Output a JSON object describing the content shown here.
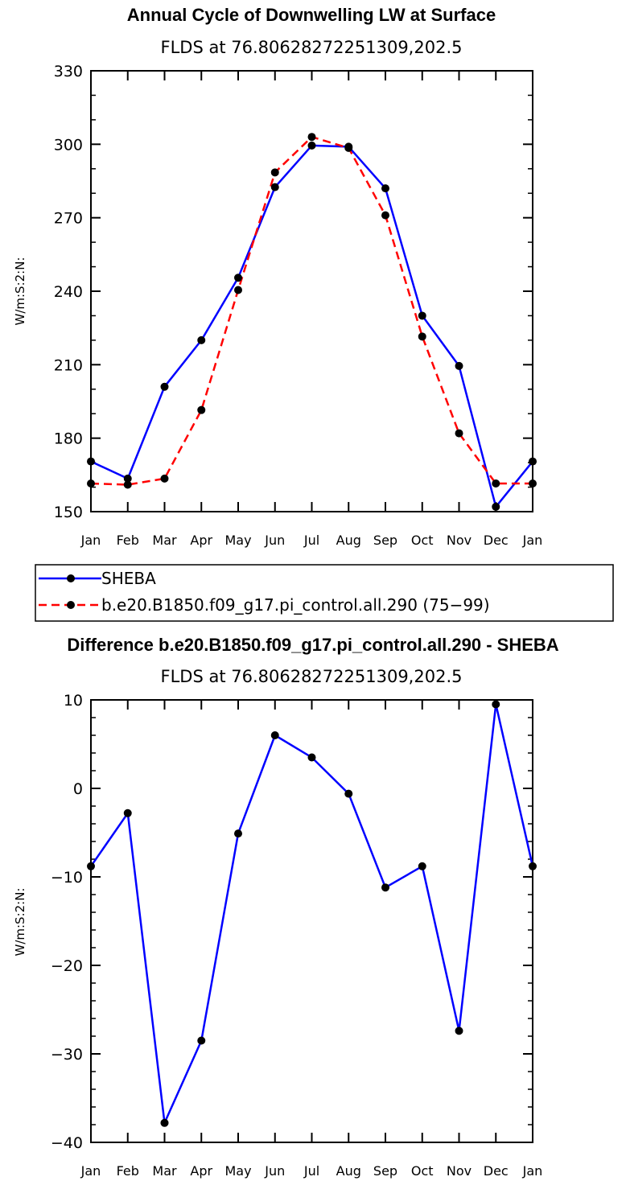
{
  "chart_data": [
    {
      "type": "line",
      "title": "Annual Cycle of Downwelling LW at Surface",
      "subtitle": "FLDS at 76.80628272251309,202.5",
      "xlabel": "",
      "ylabel": "W/m:S:2:N:",
      "ylim": [
        150,
        330
      ],
      "yticks": [
        "330",
        "300",
        "270",
        "240",
        "210",
        "180",
        "150"
      ],
      "ytick_values": [
        330,
        300,
        270,
        240,
        210,
        180,
        150
      ],
      "categories": [
        "Jan",
        "Feb",
        "Mar",
        "Apr",
        "May",
        "Jun",
        "Jul",
        "Aug",
        "Sep",
        "Oct",
        "Nov",
        "Dec",
        "Jan"
      ],
      "series": [
        {
          "name": "SHEBA",
          "color": "#0000ff",
          "dash": "solid",
          "values": [
            170.5,
            163.5,
            201,
            220,
            245.5,
            282.5,
            299.5,
            299,
            282,
            230,
            209.5,
            152,
            170.5
          ]
        },
        {
          "name": "b.e20.B1850.f09_g17.pi_control.all.290 (75−99)",
          "color": "#ff0000",
          "dash": "dashed",
          "values": [
            161.5,
            161,
            163.5,
            191.5,
            240.5,
            288.5,
            303,
            298.5,
            271,
            221.5,
            182,
            161.5,
            161.5
          ]
        }
      ],
      "legend": {
        "items": [
          "SHEBA",
          "b.e20.B1850.f09_g17.pi_control.all.290 (75−99)"
        ],
        "placement": "below"
      }
    },
    {
      "type": "line",
      "title": "Difference b.e20.B1850.f09_g17.pi_control.all.290 - SHEBA",
      "subtitle": "FLDS at 76.80628272251309,202.5",
      "xlabel": "",
      "ylabel": "W/m:S:2:N:",
      "ylim": [
        -40,
        10
      ],
      "yticks": [
        "10",
        "0",
        "−10",
        "−20",
        "−30",
        "−40"
      ],
      "ytick_values": [
        10,
        0,
        -10,
        -20,
        -30,
        -40
      ],
      "categories": [
        "Jan",
        "Feb",
        "Mar",
        "Apr",
        "May",
        "Jun",
        "Jul",
        "Aug",
        "Sep",
        "Oct",
        "Nov",
        "Dec",
        "Jan"
      ],
      "series": [
        {
          "name": "Difference",
          "color": "#0000ff",
          "dash": "solid",
          "values": [
            -8.8,
            -2.8,
            -37.8,
            -28.5,
            -5.1,
            6.0,
            3.5,
            -0.6,
            -11.2,
            -8.8,
            -27.4,
            9.5,
            -8.8
          ]
        }
      ]
    }
  ]
}
